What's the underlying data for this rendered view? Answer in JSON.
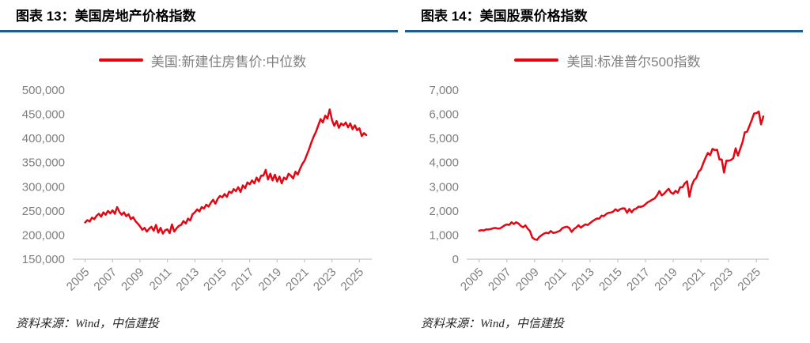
{
  "colors": {
    "series_red": "#e30613",
    "title_rule_blue": "#1e5c94",
    "axis_line_gray": "#c3c3c3",
    "tick_label_gray": "#7f7f7f",
    "legend_text_gray": "#7f7f7f",
    "source_text": "#262626"
  },
  "panels": [
    {
      "figure_label": "图表 13：美国房地产价格指数",
      "source": "资料来源：Wind，中信建投"
    },
    {
      "figure_label": "图表 14：美国股票价格指数",
      "source": "资料来源：Wind，中信建投"
    }
  ],
  "chart_data": [
    {
      "type": "line",
      "title": "美国房地产价格指数",
      "legend": "美国:新建住房售价:中位数",
      "legend_position": "top",
      "color": "#e30613",
      "grid": false,
      "x_start": 2005,
      "x_step_years": 0.16667,
      "values": [
        226000,
        231000,
        228000,
        236000,
        233000,
        240000,
        244000,
        238000,
        247000,
        242000,
        250000,
        245000,
        251000,
        244000,
        258000,
        248000,
        242000,
        247000,
        239000,
        243000,
        233000,
        237000,
        229000,
        224000,
        218000,
        211000,
        215000,
        207000,
        213000,
        217000,
        209000,
        221000,
        205000,
        215000,
        203000,
        210000,
        212000,
        204000,
        222000,
        207000,
        214000,
        219000,
        221000,
        229000,
        224000,
        234000,
        230000,
        243000,
        247000,
        253000,
        249000,
        258000,
        255000,
        263000,
        259000,
        267000,
        273000,
        265000,
        275000,
        281000,
        278000,
        285000,
        279000,
        290000,
        287000,
        295000,
        291000,
        299000,
        289000,
        303000,
        297000,
        309000,
        305000,
        313000,
        307000,
        319000,
        311000,
        323000,
        323000,
        335000,
        315000,
        327000,
        313000,
        325000,
        311000,
        321000,
        307000,
        319000,
        315000,
        327000,
        323000,
        317000,
        331000,
        325000,
        337000,
        347000,
        354000,
        366000,
        378000,
        392000,
        404000,
        414000,
        427000,
        440000,
        433000,
        447000,
        441000,
        460000,
        438000,
        426000,
        436000,
        422000,
        431000,
        427000,
        433000,
        423000,
        431000,
        419000,
        427000,
        417000,
        421000,
        405000,
        411000,
        407000
      ],
      "ylim": [
        150000,
        500000
      ],
      "yticks": [
        150000,
        200000,
        250000,
        300000,
        350000,
        400000,
        450000,
        500000
      ],
      "ytick_labels": [
        "150,000",
        "200,000",
        "250,000",
        "300,000",
        "350,000",
        "400,000",
        "450,000",
        "500,000"
      ],
      "xlim": [
        2004.1,
        2025.9
      ],
      "xticks": [
        2005,
        2007,
        2009,
        2011,
        2013,
        2015,
        2017,
        2019,
        2021,
        2023,
        2025
      ],
      "xtick_labels": [
        "2005",
        "2007",
        "2009",
        "2011",
        "2013",
        "2015",
        "2017",
        "2019",
        "2021",
        "2023",
        "2025"
      ]
    },
    {
      "type": "line",
      "title": "美国股票价格指数",
      "legend": "美国:标准普尔500指数",
      "legend_position": "top",
      "color": "#e30613",
      "grid": false,
      "x_start": 2005,
      "x_step_years": 0.16667,
      "values": [
        1181,
        1204,
        1192,
        1234,
        1229,
        1249,
        1280,
        1295,
        1270,
        1277,
        1336,
        1401,
        1438,
        1421,
        1531,
        1455,
        1527,
        1481,
        1379,
        1323,
        1400,
        1267,
        1166,
        896,
        826,
        798,
        919,
        987,
        1057,
        1096,
        1074,
        1169,
        1089,
        1102,
        1141,
        1181,
        1286,
        1326,
        1345,
        1292,
        1131,
        1247,
        1312,
        1408,
        1310,
        1379,
        1441,
        1416,
        1498,
        1569,
        1631,
        1686,
        1682,
        1806,
        1783,
        1872,
        1924,
        1931,
        1972,
        2068,
        1995,
        2068,
        2107,
        2104,
        1920,
        2080,
        1940,
        2060,
        2097,
        2174,
        2168,
        2199,
        2279,
        2363,
        2412,
        2470,
        2519,
        2648,
        2824,
        2641,
        2705,
        2816,
        2914,
        2760,
        2704,
        2834,
        2752,
        2980,
        2977,
        3141,
        3226,
        2585,
        3044,
        3271,
        3363,
        3622,
        3714,
        3973,
        4204,
        4395,
        4308,
        4567,
        4516,
        4530,
        4132,
        4130,
        3586,
        4080,
        4077,
        4109,
        4180,
        4589,
        4288,
        4568,
        4846,
        5254,
        5278,
        5522,
        5762,
        6032,
        6041,
        6115,
        5581,
        5912
      ],
      "ylim": [
        0,
        7000
      ],
      "yticks": [
        0,
        1000,
        2000,
        3000,
        4000,
        5000,
        6000,
        7000
      ],
      "ytick_labels": [
        "0",
        "1,000",
        "2,000",
        "3,000",
        "4,000",
        "5,000",
        "6,000",
        "7,000"
      ],
      "xlim": [
        2004.1,
        2025.9
      ],
      "xticks": [
        2005,
        2007,
        2009,
        2011,
        2013,
        2015,
        2017,
        2019,
        2021,
        2023,
        2025
      ],
      "xtick_labels": [
        "2005",
        "2007",
        "2009",
        "2011",
        "2013",
        "2015",
        "2017",
        "2019",
        "2021",
        "2023",
        "2025"
      ]
    }
  ]
}
